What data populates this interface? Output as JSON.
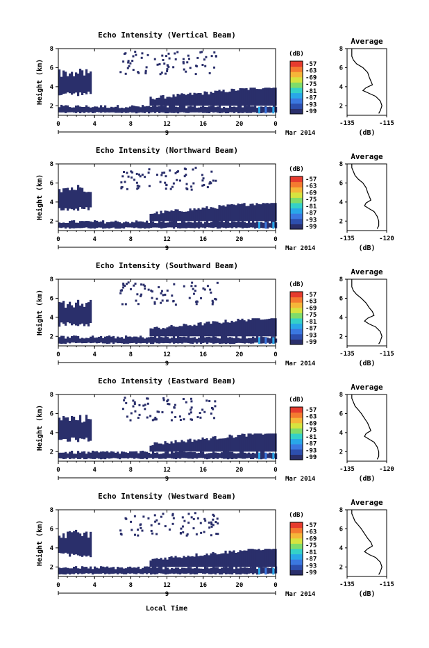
{
  "figure": {
    "xlabel": "Local Time",
    "date_label": "Mar 2014"
  },
  "colorbar": {
    "unit": "(dB)",
    "tick_labels": [
      "-57",
      "-63",
      "-69",
      "-75",
      "-81",
      "-87",
      "-93",
      "-99"
    ],
    "colors": [
      "#2a2f6b",
      "#2d4fae",
      "#3b78e0",
      "#29a7e8",
      "#34d1c8",
      "#7fdc6a",
      "#d6e33f",
      "#f5b639",
      "#f47a30",
      "#e63b2e"
    ]
  },
  "chart_data": [
    {
      "type": "heatmap",
      "title": "Echo Intensity (Vertical Beam)",
      "ylabel": "Height (km)",
      "xlabel": "Local Time",
      "x_ticks": [
        "0",
        "4",
        "8",
        "12",
        "16",
        "20",
        "0"
      ],
      "x_day_label": "9",
      "y_ticks": [
        "2",
        "4",
        "6",
        "8"
      ],
      "ylim": [
        1,
        8
      ],
      "colorbar_label": "(dB)",
      "colorbar_ticks": [
        "-57",
        "-63",
        "-69",
        "-75",
        "-81",
        "-87",
        "-93",
        "-99"
      ],
      "average_profile": {
        "title": "Average",
        "xlabel": "(dB)",
        "x_ticks": [
          "-135",
          "-115"
        ],
        "y_ticks": [
          "2",
          "4",
          "6",
          "8"
        ],
        "height_km": [
          1.2,
          1.5,
          2.0,
          2.5,
          3.0,
          3.3,
          3.6,
          3.9,
          4.2,
          4.6,
          5.0,
          5.5,
          6.0,
          6.4,
          6.8,
          7.2,
          7.6,
          8.0
        ],
        "db": [
          -118,
          -117,
          -116,
          -117,
          -120,
          -124,
          -128,
          -126,
          -122,
          -123,
          -124,
          -125,
          -128,
          -132,
          -134,
          -135,
          -135,
          -135
        ]
      }
    },
    {
      "type": "heatmap",
      "title": "Echo Intensity (Northward Beam)",
      "ylabel": "Height (km)",
      "xlabel": "Local Time",
      "x_ticks": [
        "0",
        "4",
        "8",
        "12",
        "16",
        "20",
        "0"
      ],
      "x_day_label": "9",
      "y_ticks": [
        "2",
        "4",
        "6",
        "8"
      ],
      "ylim": [
        1,
        8
      ],
      "colorbar_label": "(dB)",
      "colorbar_ticks": [
        "-57",
        "-63",
        "-69",
        "-75",
        "-81",
        "-87",
        "-93",
        "-99"
      ],
      "average_profile": {
        "title": "Average",
        "xlabel": "(dB)",
        "x_ticks": [
          "-135",
          "-120"
        ],
        "y_ticks": [
          "2",
          "4",
          "6",
          "8"
        ],
        "height_km": [
          1.2,
          1.5,
          2.0,
          2.5,
          3.0,
          3.3,
          3.6,
          3.9,
          4.2,
          4.6,
          5.0,
          5.5,
          6.0,
          6.4,
          6.8,
          7.2,
          7.6,
          8.0
        ],
        "db": [
          -119,
          -118,
          -118,
          -119,
          -121,
          -124,
          -127,
          -126,
          -123,
          -124,
          -125,
          -126,
          -128,
          -131,
          -133,
          -134,
          -135,
          -135
        ]
      }
    },
    {
      "type": "heatmap",
      "title": "Echo Intensity (Southward Beam)",
      "ylabel": "Height (km)",
      "xlabel": "Local Time",
      "x_ticks": [
        "0",
        "4",
        "8",
        "12",
        "16",
        "20",
        "0"
      ],
      "x_day_label": "9",
      "y_ticks": [
        "2",
        "4",
        "6",
        "8"
      ],
      "ylim": [
        1,
        8
      ],
      "colorbar_label": "(dB)",
      "colorbar_ticks": [
        "-57",
        "-63",
        "-69",
        "-75",
        "-81",
        "-87",
        "-93",
        "-99"
      ],
      "average_profile": {
        "title": "Average",
        "xlabel": "(dB)",
        "x_ticks": [
          "-135",
          "-115"
        ],
        "y_ticks": [
          "2",
          "4",
          "6",
          "8"
        ],
        "height_km": [
          1.2,
          1.5,
          2.0,
          2.5,
          3.0,
          3.3,
          3.6,
          3.9,
          4.2,
          4.6,
          5.0,
          5.5,
          6.0,
          6.4,
          6.8,
          7.2,
          7.6,
          8.0
        ],
        "db": [
          -118,
          -117,
          -116,
          -117,
          -120,
          -124,
          -127,
          -125,
          -121,
          -122,
          -124,
          -126,
          -129,
          -132,
          -134,
          -135,
          -135,
          -135
        ]
      }
    },
    {
      "type": "heatmap",
      "title": "Echo Intensity (Eastward Beam)",
      "ylabel": "Height (km)",
      "xlabel": "Local Time",
      "x_ticks": [
        "0",
        "4",
        "8",
        "12",
        "16",
        "20",
        "0"
      ],
      "x_day_label": "9",
      "y_ticks": [
        "2",
        "4",
        "6",
        "8"
      ],
      "ylim": [
        1,
        8
      ],
      "colorbar_label": "(dB)",
      "colorbar_ticks": [
        "-57",
        "-63",
        "-69",
        "-75",
        "-81",
        "-87",
        "-93",
        "-99"
      ],
      "average_profile": {
        "title": "Average",
        "xlabel": "(dB)",
        "x_ticks": [
          "-135",
          "-120"
        ],
        "y_ticks": [
          "2",
          "4",
          "6",
          "8"
        ],
        "height_km": [
          1.2,
          1.5,
          2.0,
          2.5,
          3.0,
          3.3,
          3.6,
          3.9,
          4.2,
          4.6,
          5.0,
          5.5,
          6.0,
          6.4,
          6.8,
          7.2,
          7.6,
          8.0
        ],
        "db": [
          -119,
          -118,
          -118,
          -119,
          -121,
          -124,
          -127,
          -126,
          -123,
          -124,
          -125,
          -127,
          -129,
          -131,
          -133,
          -134,
          -135,
          -135
        ]
      }
    },
    {
      "type": "heatmap",
      "title": "Echo Intensity (Westward Beam)",
      "ylabel": "Height (km)",
      "xlabel": "Local Time",
      "x_ticks": [
        "0",
        "4",
        "8",
        "12",
        "16",
        "20",
        "0"
      ],
      "x_day_label": "9",
      "y_ticks": [
        "2",
        "4",
        "6",
        "8"
      ],
      "ylim": [
        1,
        8
      ],
      "colorbar_label": "(dB)",
      "colorbar_ticks": [
        "-57",
        "-63",
        "-69",
        "-75",
        "-81",
        "-87",
        "-93",
        "-99"
      ],
      "average_profile": {
        "title": "Average",
        "xlabel": "(dB)",
        "x_ticks": [
          "-135",
          "-115"
        ],
        "y_ticks": [
          "2",
          "4",
          "6",
          "8"
        ],
        "height_km": [
          1.2,
          1.5,
          2.0,
          2.5,
          3.0,
          3.3,
          3.6,
          3.9,
          4.2,
          4.6,
          5.0,
          5.5,
          6.0,
          6.4,
          6.8,
          7.2,
          7.6,
          8.0
        ],
        "db": [
          -118,
          -117,
          -116,
          -117,
          -120,
          -124,
          -127,
          -125,
          -122,
          -123,
          -125,
          -127,
          -129,
          -131,
          -133,
          -134,
          -135,
          -135
        ]
      }
    }
  ]
}
